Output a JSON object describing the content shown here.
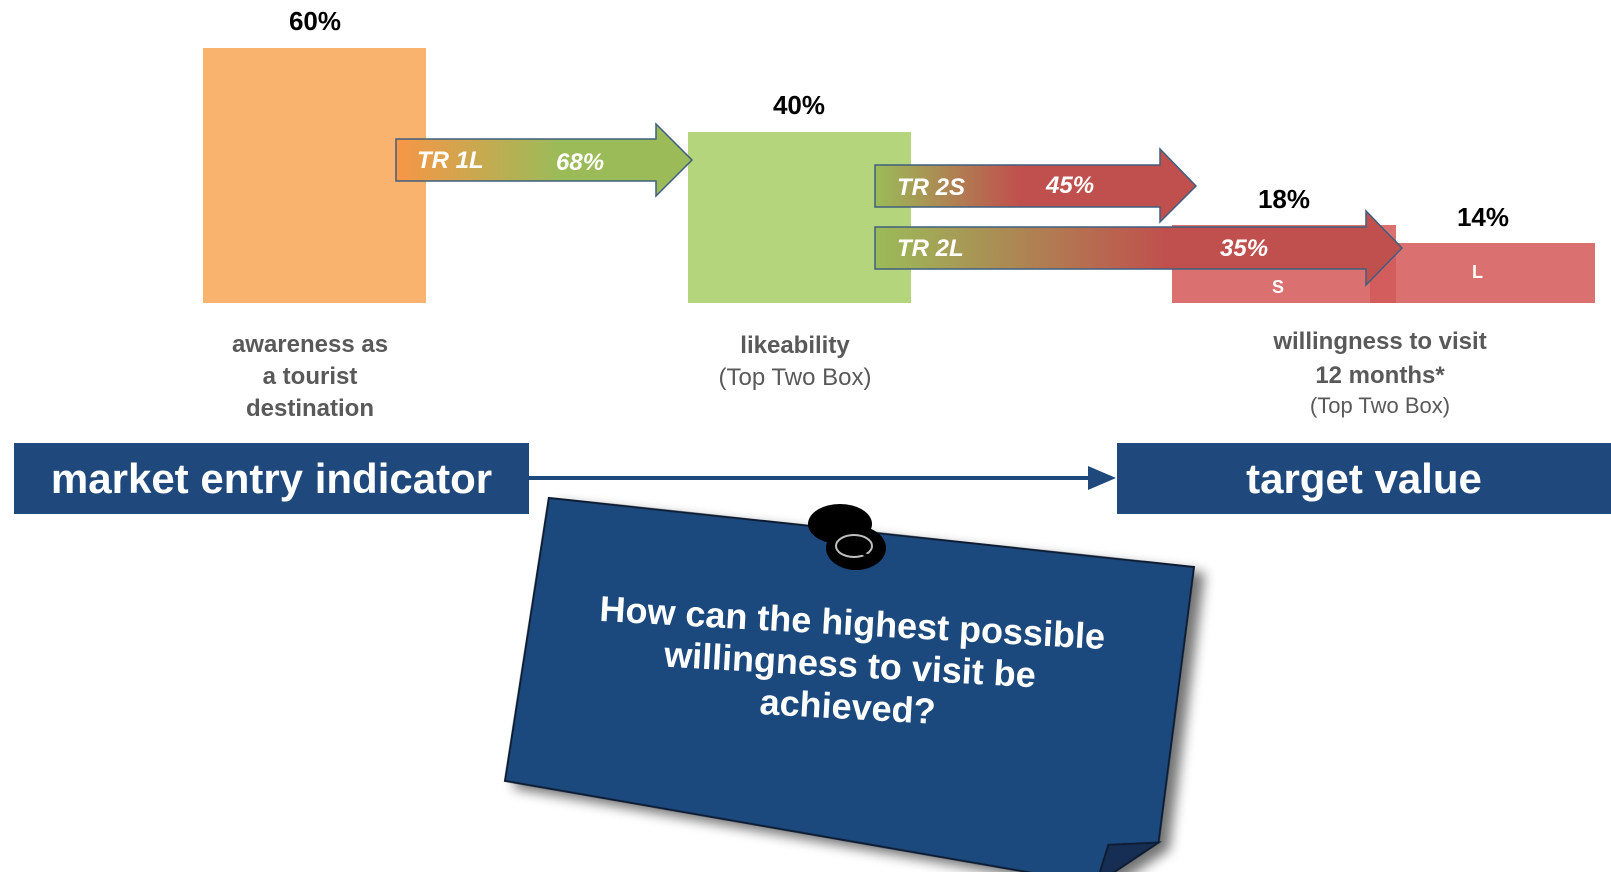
{
  "stages": [
    {
      "value": "60%",
      "label_bold": [
        "awareness as",
        "a tourist",
        "destination"
      ],
      "label_sub": "",
      "color": "#fab26f"
    },
    {
      "value": "40%",
      "label_bold": [
        "likeability"
      ],
      "label_sub": "(Top Two Box)",
      "color": "#b5d57d"
    },
    {
      "value_s": "18%",
      "value_l": "14%",
      "label_bold": [
        "willingness to visit",
        "12 months*"
      ],
      "label_sub": "(Top Two Box)",
      "color": "#db7070"
    }
  ],
  "segments": {
    "s": "S",
    "l": "L"
  },
  "transitions": [
    {
      "name": "TR 1L",
      "rate": "68%"
    },
    {
      "name": "TR 2S",
      "rate": "45%"
    },
    {
      "name": "TR 2L",
      "rate": "35%"
    }
  ],
  "banners": {
    "left": "market entry indicator",
    "right": "target value"
  },
  "note": {
    "question": "How can the highest possible willingness to visit be achieved?"
  },
  "colors": {
    "navy": "#1f497d",
    "orange": "#fab26f",
    "green": "#b5d57d",
    "red": "#db7070",
    "arrow_green": "#9bbb59",
    "arrow_red": "#c0504d"
  }
}
